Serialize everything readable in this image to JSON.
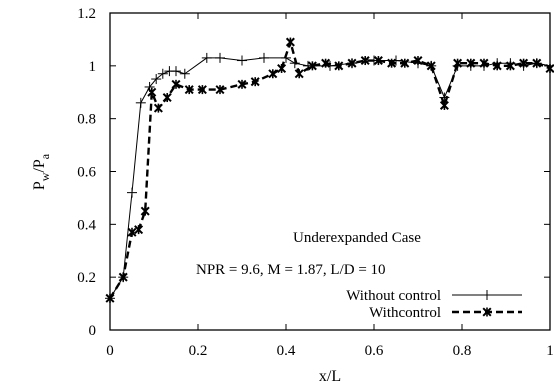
{
  "chart_data": {
    "type": "line",
    "xlabel": "x/L",
    "ylabel": "P",
    "ylabel_sub1": "w",
    "ylabel_mid": "/P",
    "ylabel_sub2": "a",
    "xlim": [
      0,
      1
    ],
    "ylim": [
      0,
      1.2
    ],
    "xticks": [
      "0",
      "0.2",
      "0.4",
      "0.6",
      "0.8",
      "1"
    ],
    "yticks": [
      "0",
      "0.2",
      "0.4",
      "0.6",
      "0.8",
      "1",
      "1.2"
    ],
    "grid": false,
    "legend_position": "bottom-right",
    "annotations": [
      "Underexpanded Case",
      "NPR = 9.6, M = 1.87, L/D = 10"
    ],
    "series": [
      {
        "name": "Without control",
        "color": "#000000",
        "marker": "plus",
        "linestyle": "solid",
        "x": [
          0,
          0.03,
          0.05,
          0.07,
          0.09,
          0.105,
          0.12,
          0.135,
          0.15,
          0.17,
          0.22,
          0.25,
          0.3,
          0.35,
          0.4,
          0.42,
          0.45,
          0.5,
          0.55,
          0.6,
          0.65,
          0.7,
          0.73,
          0.76,
          0.79,
          0.82,
          0.85,
          0.88,
          0.91,
          0.94,
          0.97,
          1.0
        ],
        "y": [
          0.12,
          0.2,
          0.52,
          0.86,
          0.92,
          0.95,
          0.97,
          0.98,
          0.98,
          0.97,
          1.03,
          1.03,
          1.02,
          1.03,
          1.03,
          1.01,
          1.0,
          1.0,
          1.01,
          1.02,
          1.02,
          1.01,
          1.0,
          0.88,
          1.0,
          1.0,
          1.0,
          1.01,
          1.01,
          1.0,
          1.01,
          1.0
        ]
      },
      {
        "name": "Withcontrol",
        "color": "#000000",
        "marker": "x",
        "linestyle": "dashed",
        "x": [
          0,
          0.03,
          0.05,
          0.065,
          0.08,
          0.095,
          0.11,
          0.13,
          0.15,
          0.18,
          0.21,
          0.25,
          0.3,
          0.33,
          0.37,
          0.39,
          0.41,
          0.43,
          0.46,
          0.49,
          0.52,
          0.55,
          0.58,
          0.61,
          0.64,
          0.67,
          0.7,
          0.73,
          0.76,
          0.79,
          0.82,
          0.85,
          0.88,
          0.91,
          0.94,
          0.97,
          1.0
        ],
        "y": [
          0.12,
          0.2,
          0.37,
          0.38,
          0.45,
          0.9,
          0.84,
          0.88,
          0.93,
          0.91,
          0.91,
          0.91,
          0.93,
          0.94,
          0.97,
          0.99,
          1.09,
          0.97,
          1.0,
          1.01,
          1.0,
          1.01,
          1.02,
          1.02,
          1.01,
          1.01,
          1.02,
          1.0,
          0.85,
          1.01,
          1.01,
          1.01,
          1.0,
          1.0,
          1.01,
          1.01,
          0.99
        ]
      }
    ]
  }
}
